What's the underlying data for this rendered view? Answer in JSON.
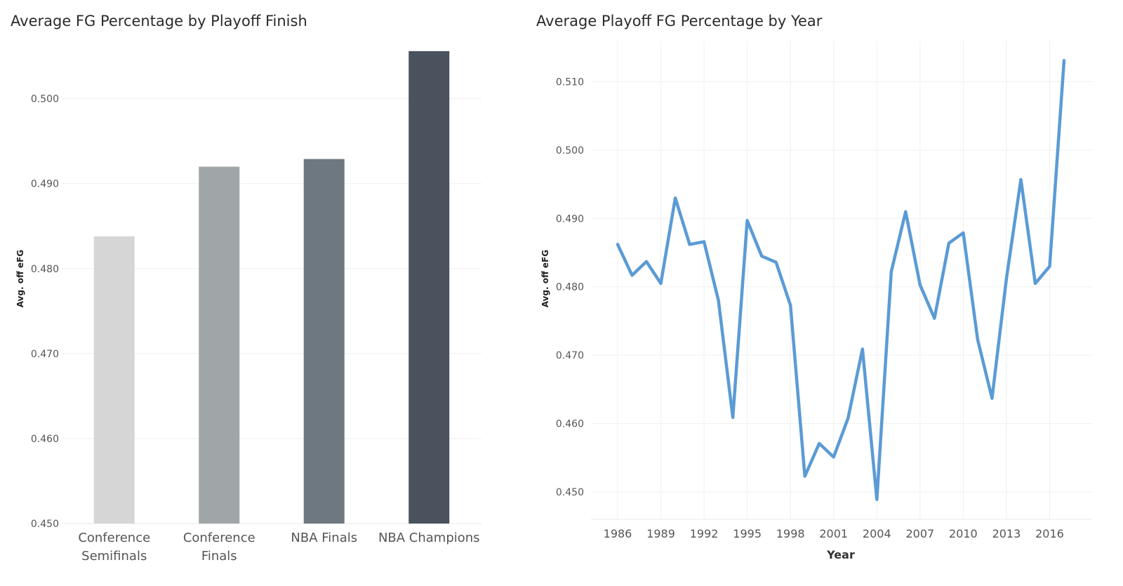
{
  "chart_data": [
    {
      "type": "bar",
      "title": "Average FG Percentage by Playoff Finish",
      "ylabel": "Avg. off eFG",
      "xlabel": "",
      "categories": [
        [
          "Conference",
          "Semifinals"
        ],
        [
          "Conference",
          "Finals"
        ],
        [
          "NBA Finals"
        ],
        [
          "NBA Champions"
        ]
      ],
      "values": [
        0.4838,
        0.492,
        0.4929,
        0.5056
      ],
      "colors": [
        "#d6d6d6",
        "#a0a5a8",
        "#6e7880",
        "#4a525d"
      ],
      "ylim": [
        0.45,
        0.506
      ],
      "yticks": [
        "0.450",
        "0.460",
        "0.470",
        "0.480",
        "0.490",
        "0.500"
      ],
      "grid": true
    },
    {
      "type": "line",
      "title": "Average Playoff FG Percentage by Year",
      "ylabel": "Avg. off eFG",
      "xlabel": "Year",
      "x": [
        1986,
        1987,
        1988,
        1989,
        1990,
        1991,
        1992,
        1993,
        1994,
        1995,
        1996,
        1997,
        1998,
        1999,
        2000,
        2001,
        2002,
        2003,
        2004,
        2005,
        2006,
        2007,
        2008,
        2009,
        2010,
        2011,
        2012,
        2013,
        2014,
        2015,
        2016,
        2017
      ],
      "values": [
        0.4862,
        0.4817,
        0.4837,
        0.4805,
        0.493,
        0.4862,
        0.4866,
        0.478,
        0.4609,
        0.4897,
        0.4845,
        0.4836,
        0.4773,
        0.4523,
        0.4571,
        0.4551,
        0.4608,
        0.4709,
        0.4489,
        0.4822,
        0.491,
        0.4803,
        0.4754,
        0.4864,
        0.4879,
        0.4723,
        0.4637,
        0.4812,
        0.4957,
        0.4805,
        0.483,
        0.5131
      ],
      "color": "#5b9bd5",
      "ylim": [
        0.446,
        0.516
      ],
      "xticks": [
        "1986",
        "1989",
        "1992",
        "1995",
        "1998",
        "2001",
        "2004",
        "2007",
        "2010",
        "2013",
        "2016"
      ],
      "yticks": [
        "0.450",
        "0.460",
        "0.470",
        "0.480",
        "0.490",
        "0.500",
        "0.510"
      ],
      "grid": true
    }
  ]
}
